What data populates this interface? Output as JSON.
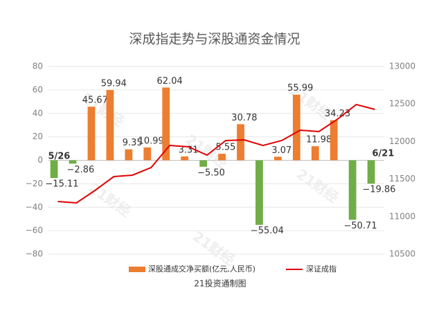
{
  "chart_data": {
    "type": "bar-line",
    "title": "深成指走势与深股通资金情况",
    "categories": [
      null,
      null,
      null,
      null,
      null,
      null,
      null,
      null,
      null,
      null,
      null,
      null,
      null,
      null,
      null,
      null,
      null,
      null
    ],
    "annotations": [
      "5/26",
      "6/21"
    ],
    "series": [
      {
        "name": "深股通成交净买额(亿元,人民币)",
        "type": "bar",
        "positive_color": "#ed7d31",
        "negative_color": "#70ad47",
        "values": [
          -15.11,
          -2.86,
          45.67,
          59.94,
          9.35,
          10.99,
          62.04,
          3.31,
          -5.5,
          5.55,
          30.78,
          -55.04,
          3.07,
          55.99,
          11.98,
          34.23,
          -50.71,
          -19.86
        ],
        "value_labels": [
          "−15.11",
          "−2.86",
          "45.67",
          "59.94",
          "9.35",
          "10.99",
          "62.04",
          "3.31",
          "−5.50",
          "5.55",
          "30.78",
          "−55.04",
          "3.07",
          "55.99",
          "11.98",
          "34.23",
          "−50.71",
          "−19.86"
        ]
      },
      {
        "name": "深证成指",
        "type": "line",
        "axis": "y2",
        "color": "#e00000",
        "values": [
          11201,
          11183,
          11349,
          11533,
          11552,
          11653,
          11948,
          11930,
          11819,
          12013,
          12022,
          11948,
          12013,
          12151,
          12133,
          12299,
          12493,
          12428
        ]
      }
    ],
    "ylim": [
      -80,
      80
    ],
    "yticks": [
      {
        "value": -80,
        "label": "−80"
      },
      {
        "value": -60,
        "label": "−60"
      },
      {
        "value": -40,
        "label": "−40"
      },
      {
        "value": -20,
        "label": "−20"
      },
      0,
      20,
      40,
      60,
      80
    ],
    "y2lim": [
      10500,
      13000
    ],
    "y2ticks": [
      10500,
      11000,
      11500,
      12000,
      12500,
      13000
    ],
    "grid": true,
    "legend": "bottom",
    "source": "21投资通制图",
    "watermark": "21财经"
  }
}
